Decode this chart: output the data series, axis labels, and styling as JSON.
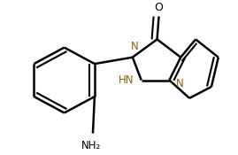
{
  "bg_color": "#ffffff",
  "line_color": "#000000",
  "lw": 1.8,
  "doff_inner": 0.012,
  "figsize": [
    2.69,
    1.75
  ],
  "dpi": 100,
  "NH2_label": "NH₂",
  "O_label": "O",
  "N_color": "#8B6400",
  "N_label": "N",
  "HN_label": "HN"
}
